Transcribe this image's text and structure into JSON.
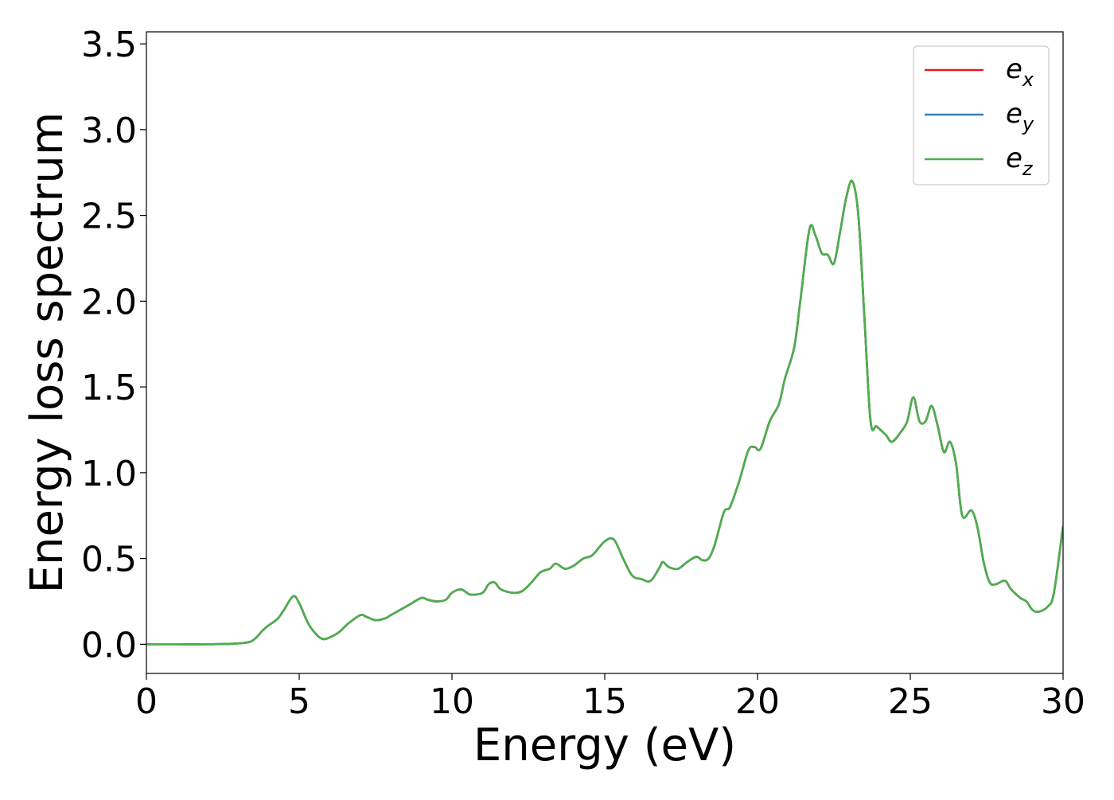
{
  "chart_data": {
    "type": "line",
    "xlabel": "Energy (eV)",
    "ylabel": "Energy loss spectrum",
    "xlim": [
      0,
      30
    ],
    "ylim": [
      -0.17,
      3.57
    ],
    "xticks": [
      0,
      5,
      10,
      15,
      20,
      25,
      30
    ],
    "xtick_labels": [
      "0",
      "5",
      "10",
      "15",
      "20",
      "25",
      "30"
    ],
    "yticks": [
      0.0,
      0.5,
      1.0,
      1.5,
      2.0,
      2.5,
      3.0,
      3.5
    ],
    "ytick_labels": [
      "0.0",
      "0.5",
      "1.0",
      "1.5",
      "2.0",
      "2.5",
      "3.0",
      "3.5"
    ],
    "grid": false,
    "legend_position": "top-right",
    "series": [
      {
        "name": "e_x",
        "legend_base": "e",
        "legend_sub": "x",
        "color": "#e41a1c"
      },
      {
        "name": "e_y",
        "legend_base": "e",
        "legend_sub": "y",
        "color": "#377eb8"
      },
      {
        "name": "e_z",
        "legend_base": "e",
        "legend_sub": "z",
        "color": "#4daf4a"
      }
    ],
    "curve": {
      "note_series": "all three series overlap; identical values",
      "x": [
        0,
        1,
        2,
        3,
        3.4,
        3.6,
        3.8,
        4.0,
        4.3,
        4.5,
        4.8,
        5.0,
        5.3,
        5.6,
        5.8,
        6.0,
        6.3,
        6.6,
        7.0,
        7.2,
        7.5,
        7.8,
        8.0,
        8.3,
        8.6,
        9.0,
        9.2,
        9.5,
        9.8,
        10.0,
        10.3,
        10.6,
        11.0,
        11.2,
        11.4,
        11.6,
        12.0,
        12.3,
        12.6,
        12.9,
        13.2,
        13.4,
        13.7,
        14.0,
        14.3,
        14.6,
        15.0,
        15.3,
        15.6,
        15.9,
        16.2,
        16.5,
        16.8,
        16.9,
        17.1,
        17.4,
        17.7,
        18.0,
        18.2,
        18.4,
        18.6,
        18.9,
        19.1,
        19.4,
        19.7,
        19.9,
        20.1,
        20.4,
        20.7,
        20.9,
        21.2,
        21.4,
        21.7,
        21.9,
        22.1,
        22.3,
        22.5,
        22.7,
        22.9,
        23.1,
        23.3,
        23.5,
        23.7,
        23.9,
        24.2,
        24.4,
        24.7,
        24.9,
        25.1,
        25.3,
        25.5,
        25.7,
        25.9,
        26.1,
        26.3,
        26.5,
        26.7,
        27.0,
        27.2,
        27.4,
        27.6,
        27.8,
        28.1,
        28.3,
        28.6,
        28.8,
        29.0,
        29.2,
        29.5,
        29.7,
        30.0
      ],
      "y": [
        0.0,
        0.0,
        0.0,
        0.005,
        0.015,
        0.04,
        0.08,
        0.11,
        0.15,
        0.2,
        0.28,
        0.24,
        0.12,
        0.05,
        0.03,
        0.04,
        0.07,
        0.12,
        0.17,
        0.16,
        0.14,
        0.15,
        0.17,
        0.2,
        0.23,
        0.27,
        0.26,
        0.25,
        0.26,
        0.3,
        0.32,
        0.29,
        0.3,
        0.35,
        0.36,
        0.32,
        0.3,
        0.31,
        0.36,
        0.42,
        0.44,
        0.47,
        0.44,
        0.46,
        0.5,
        0.52,
        0.6,
        0.61,
        0.5,
        0.4,
        0.38,
        0.37,
        0.45,
        0.48,
        0.45,
        0.44,
        0.48,
        0.51,
        0.49,
        0.5,
        0.58,
        0.77,
        0.8,
        0.95,
        1.13,
        1.15,
        1.14,
        1.3,
        1.4,
        1.55,
        1.73,
        2.0,
        2.42,
        2.38,
        2.28,
        2.27,
        2.22,
        2.4,
        2.6,
        2.7,
        2.5,
        1.9,
        1.3,
        1.27,
        1.22,
        1.18,
        1.24,
        1.3,
        1.44,
        1.3,
        1.3,
        1.39,
        1.27,
        1.12,
        1.18,
        1.05,
        0.75,
        0.78,
        0.68,
        0.48,
        0.36,
        0.35,
        0.37,
        0.32,
        0.27,
        0.25,
        0.2,
        0.19,
        0.22,
        0.3,
        0.69
      ]
    }
  }
}
